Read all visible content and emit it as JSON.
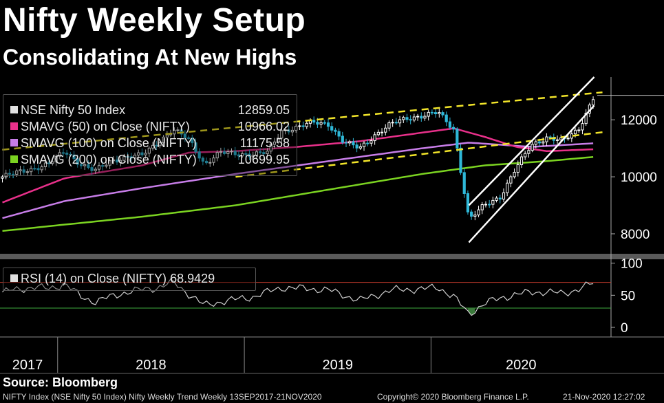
{
  "title": "Nifty Weekly Setup",
  "subtitle": "Consolidating At New Highs",
  "colors": {
    "background": "#000000",
    "price_up": "#ffffff",
    "price_down": "#2fb8d8",
    "sma50": "#e8308a",
    "sma100": "#c77de8",
    "sma200": "#7bd321",
    "trendline_dashed": "#f2e52a",
    "channel": "#ffffff",
    "rsi_line": "#cfcfcf",
    "rsi_upper": "#c0392b",
    "rsi_lower": "#3fae3f"
  },
  "legend": [
    {
      "label": "NSE Nifty 50 Index",
      "value": "12859.05",
      "color": "#e0e0e0"
    },
    {
      "label": "SMAVG (50)  on Close (NIFTY)",
      "value": "10966.02",
      "color": "#e8308a"
    },
    {
      "label": "SMAVG (100)  on Close (NIFTY)",
      "value": "11175.58",
      "color": "#c77de8"
    },
    {
      "label": "SMAVG (200)  on Close (NIFTY)",
      "value": "10699.95",
      "color": "#7bd321"
    }
  ],
  "rsi_legend": {
    "label": "RSI (14)  on Close (NIFTY)",
    "value": "68.9429"
  },
  "source": "Source: Bloomberg",
  "footer": {
    "left": "NIFTY Index (NSE Nifty 50 Index) Nifty Weekly Trend  Weekly 13SEP2017-21NOV2020",
    "middle": "Copyright© 2020 Bloomberg Finance L.P.",
    "right": "21-Nov-2020 12:27:02"
  },
  "chart_data": {
    "type": "line",
    "title": "Nifty Weekly Setup",
    "subtitle": "Consolidating At New Highs",
    "x_tick_labels": [
      "2017",
      "2018",
      "2019",
      "2020"
    ],
    "price_axis": {
      "ticks": [
        8000,
        10000,
        12000
      ],
      "ylim": [
        7300,
        13500
      ]
    },
    "rsi_axis": {
      "ticks": [
        0,
        50,
        100
      ],
      "ylim": [
        -15,
        105
      ],
      "upper_band": 70,
      "lower_band": 30
    },
    "price_series": [
      {
        "x": "2017-09",
        "y": 10000
      },
      {
        "x": "2017-10",
        "y": 10150
      },
      {
        "x": "2017-11",
        "y": 10300
      },
      {
        "x": "2017-12",
        "y": 10450
      },
      {
        "x": "2018-01",
        "y": 10900
      },
      {
        "x": "2018-02",
        "y": 10450
      },
      {
        "x": "2018-03",
        "y": 10200
      },
      {
        "x": "2018-04",
        "y": 10550
      },
      {
        "x": "2018-05",
        "y": 10700
      },
      {
        "x": "2018-06",
        "y": 10750
      },
      {
        "x": "2018-07",
        "y": 11200
      },
      {
        "x": "2018-08",
        "y": 11650
      },
      {
        "x": "2018-09",
        "y": 11300
      },
      {
        "x": "2018-10",
        "y": 10450
      },
      {
        "x": "2018-11",
        "y": 10850
      },
      {
        "x": "2018-12",
        "y": 10800
      },
      {
        "x": "2019-01",
        "y": 10800
      },
      {
        "x": "2019-02",
        "y": 10850
      },
      {
        "x": "2019-03",
        "y": 11600
      },
      {
        "x": "2019-04",
        "y": 11750
      },
      {
        "x": "2019-05",
        "y": 11900
      },
      {
        "x": "2019-06",
        "y": 11850
      },
      {
        "x": "2019-07",
        "y": 11200
      },
      {
        "x": "2019-08",
        "y": 11000
      },
      {
        "x": "2019-09",
        "y": 11500
      },
      {
        "x": "2019-10",
        "y": 11850
      },
      {
        "x": "2019-11",
        "y": 12050
      },
      {
        "x": "2019-12",
        "y": 12150
      },
      {
        "x": "2020-01",
        "y": 12250
      },
      {
        "x": "2020-02",
        "y": 11650
      },
      {
        "x": "2020-03",
        "y": 8500
      },
      {
        "x": "2020-04",
        "y": 9000
      },
      {
        "x": "2020-05",
        "y": 9300
      },
      {
        "x": "2020-06",
        "y": 10300
      },
      {
        "x": "2020-07",
        "y": 11100
      },
      {
        "x": "2020-08",
        "y": 11400
      },
      {
        "x": "2020-09",
        "y": 11250
      },
      {
        "x": "2020-10",
        "y": 11650
      },
      {
        "x": "2020-11",
        "y": 12859
      }
    ],
    "sma50": [
      {
        "x": "2017-09",
        "y": 9100
      },
      {
        "x": "2018-01",
        "y": 9950
      },
      {
        "x": "2018-06",
        "y": 10400
      },
      {
        "x": "2018-09",
        "y": 10850
      },
      {
        "x": "2018-12",
        "y": 10900
      },
      {
        "x": "2019-04",
        "y": 11050
      },
      {
        "x": "2019-08",
        "y": 11250
      },
      {
        "x": "2019-12",
        "y": 11550
      },
      {
        "x": "2020-02",
        "y": 11700
      },
      {
        "x": "2020-04",
        "y": 11400
      },
      {
        "x": "2020-06",
        "y": 11050
      },
      {
        "x": "2020-08",
        "y": 10900
      },
      {
        "x": "2020-11",
        "y": 10966
      }
    ],
    "sma100": [
      {
        "x": "2017-09",
        "y": 8550
      },
      {
        "x": "2018-01",
        "y": 9150
      },
      {
        "x": "2018-06",
        "y": 9600
      },
      {
        "x": "2018-12",
        "y": 10100
      },
      {
        "x": "2019-06",
        "y": 10550
      },
      {
        "x": "2019-12",
        "y": 11000
      },
      {
        "x": "2020-03",
        "y": 11200
      },
      {
        "x": "2020-07",
        "y": 11050
      },
      {
        "x": "2020-11",
        "y": 11176
      }
    ],
    "sma200": [
      {
        "x": "2017-09",
        "y": 8100
      },
      {
        "x": "2018-06",
        "y": 8600
      },
      {
        "x": "2018-12",
        "y": 9000
      },
      {
        "x": "2019-06",
        "y": 9550
      },
      {
        "x": "2019-12",
        "y": 10100
      },
      {
        "x": "2020-04",
        "y": 10400
      },
      {
        "x": "2020-08",
        "y": 10550
      },
      {
        "x": "2020-11",
        "y": 10700
      }
    ],
    "rsi_series": [
      {
        "x": "2017-09",
        "y": 55
      },
      {
        "x": "2017-11",
        "y": 63
      },
      {
        "x": "2017-12",
        "y": 60
      },
      {
        "x": "2018-01",
        "y": 68
      },
      {
        "x": "2018-02",
        "y": 48
      },
      {
        "x": "2018-03",
        "y": 40
      },
      {
        "x": "2018-05",
        "y": 55
      },
      {
        "x": "2018-07",
        "y": 62
      },
      {
        "x": "2018-08",
        "y": 70
      },
      {
        "x": "2018-10",
        "y": 34
      },
      {
        "x": "2018-11",
        "y": 40
      },
      {
        "x": "2019-01",
        "y": 47
      },
      {
        "x": "2019-03",
        "y": 62
      },
      {
        "x": "2019-05",
        "y": 60
      },
      {
        "x": "2019-06",
        "y": 58
      },
      {
        "x": "2019-08",
        "y": 42
      },
      {
        "x": "2019-10",
        "y": 58
      },
      {
        "x": "2019-12",
        "y": 60
      },
      {
        "x": "2020-01",
        "y": 62
      },
      {
        "x": "2020-02",
        "y": 48
      },
      {
        "x": "2020-03",
        "y": 20
      },
      {
        "x": "2020-04",
        "y": 38
      },
      {
        "x": "2020-06",
        "y": 52
      },
      {
        "x": "2020-08",
        "y": 56
      },
      {
        "x": "2020-09",
        "y": 52
      },
      {
        "x": "2020-10",
        "y": 60
      },
      {
        "x": "2020-11",
        "y": 69
      }
    ],
    "rsi_current": 68.9429,
    "trendlines": [
      {
        "type": "dashed",
        "from": {
          "x": "2017-09",
          "y": 10950
        },
        "to": {
          "x": "2020-11",
          "y": 12950
        }
      },
      {
        "type": "dashed",
        "from": {
          "x": "2018-12",
          "y": 10000
        },
        "to": {
          "x": "2020-11",
          "y": 11550
        }
      },
      {
        "type": "channel",
        "from": {
          "x": "2020-03",
          "y": 9000
        },
        "to": {
          "x": "2020-11",
          "y": 13500
        }
      },
      {
        "type": "channel",
        "from": {
          "x": "2020-03",
          "y": 7700
        },
        "to": {
          "x": "2020-11",
          "y": 12500
        }
      }
    ],
    "grid": false
  }
}
